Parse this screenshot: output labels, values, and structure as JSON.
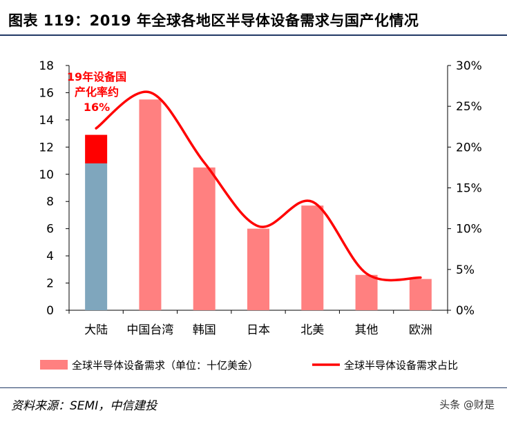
{
  "title": "图表 119：2019 年全球各地区半导体设备需求与国产化情况",
  "source": "资料来源：SEMI，中信建投",
  "watermark": "头条 @财是",
  "colors": {
    "bar": "#ff8080",
    "bar_china_base": "#7fa6bd",
    "bar_china_domestic": "#ff0000",
    "line": "#ff0000",
    "annotation": "#ff0000"
  },
  "chart_data": {
    "type": "bar",
    "categories": [
      "大陆",
      "中国台湾",
      "韩国",
      "日本",
      "北美",
      "其他",
      "欧洲"
    ],
    "series": [
      {
        "name": "全球半导体设备需求（单位：十亿美金）",
        "axis": "left",
        "type": "bar",
        "values": [
          12.9,
          15.5,
          10.5,
          6.0,
          7.7,
          2.6,
          2.3
        ]
      },
      {
        "name": "全球半导体设备需求占比",
        "axis": "right",
        "type": "line",
        "values": [
          22.3,
          26.7,
          18.1,
          10.3,
          13.3,
          4.5,
          4.0
        ]
      }
    ],
    "china_split": {
      "base": 10.8,
      "domestic": 2.1
    },
    "y_left": {
      "min": 0,
      "max": 18,
      "ticks": [
        "0",
        "2",
        "4",
        "6",
        "8",
        "10",
        "12",
        "14",
        "16",
        "18"
      ]
    },
    "y_right": {
      "min": 0,
      "max": 30,
      "ticks": [
        "0%",
        "5%",
        "10%",
        "15%",
        "20%",
        "25%",
        "30%"
      ]
    },
    "annotation": {
      "lines": [
        "19年设备国",
        "产化率约",
        "16%"
      ]
    },
    "legend": {
      "bar": "全球半导体设备需求（单位：十亿美金）",
      "line": "全球半导体设备需求占比"
    },
    "legend_position": "bottom",
    "grid": false
  }
}
